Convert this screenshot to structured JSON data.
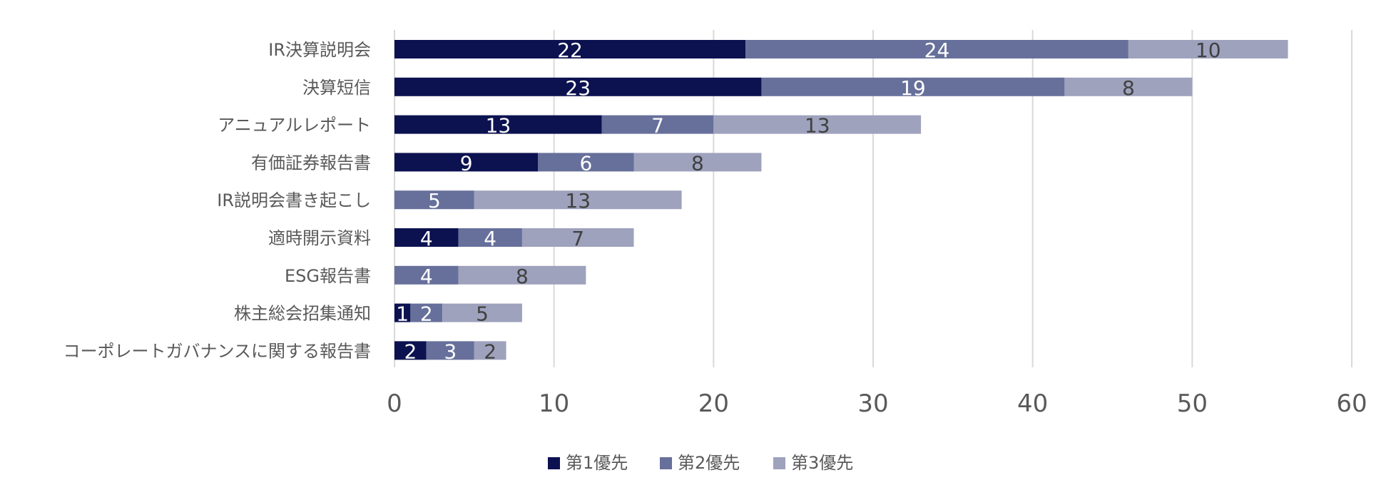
{
  "chart_data": {
    "type": "bar",
    "orientation": "horizontal",
    "stacked": true,
    "categories": [
      "IR決算説明会",
      "決算短信",
      "アニュアルレポート",
      "有価証券報告書",
      "IR説明会書き起こし",
      "適時開示資料",
      "ESG報告書",
      "株主総会招集通知",
      "コーポレートガバナンスに関する報告書"
    ],
    "series": [
      {
        "name": "第1優先",
        "color": "#0c1250",
        "label_color": "#ffffff",
        "values": [
          22,
          23,
          13,
          9,
          0,
          4,
          0,
          1,
          2
        ]
      },
      {
        "name": "第2優先",
        "color": "#67709b",
        "label_color": "#ffffff",
        "values": [
          24,
          19,
          7,
          6,
          5,
          4,
          4,
          2,
          3
        ]
      },
      {
        "name": "第3優先",
        "color": "#9ea2bd",
        "label_color": "#404040",
        "values": [
          10,
          8,
          13,
          8,
          13,
          7,
          8,
          5,
          2
        ]
      }
    ],
    "xlim": [
      0,
      60
    ],
    "xticks": [
      0,
      10,
      20,
      30,
      40,
      50,
      60
    ],
    "grid": true,
    "legend_position": "bottom"
  }
}
